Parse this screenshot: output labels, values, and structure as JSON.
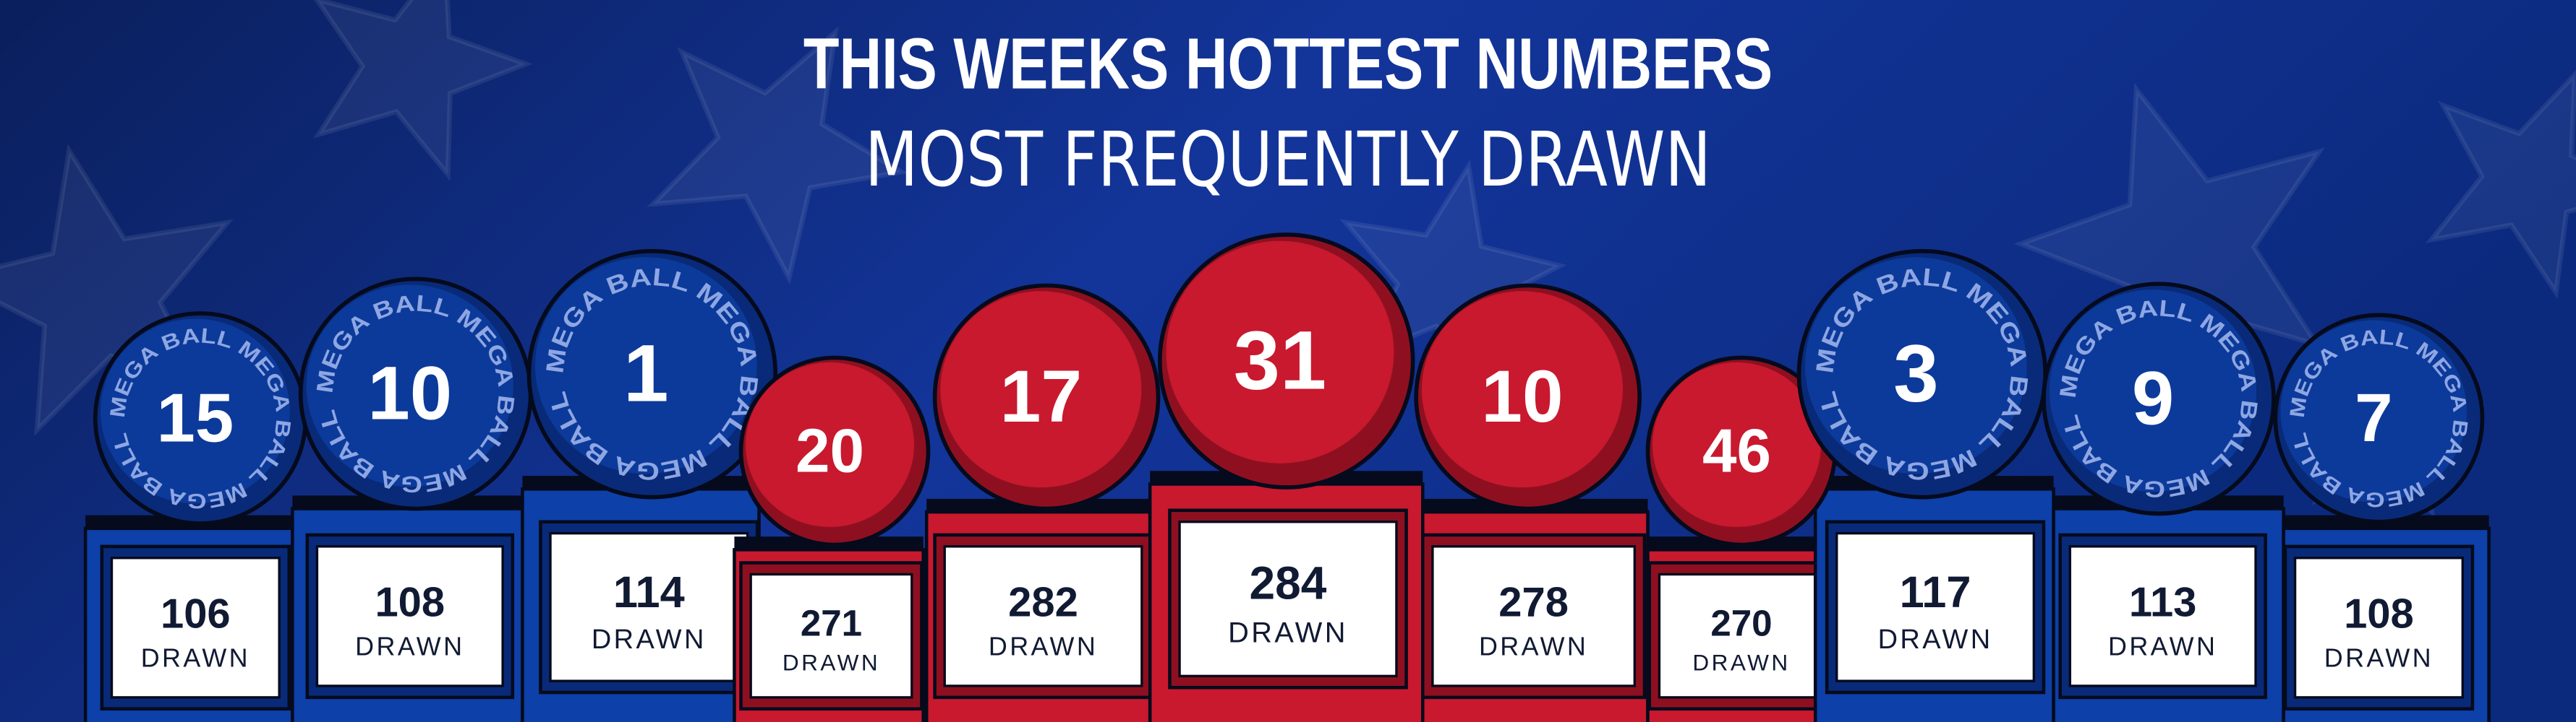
{
  "header": {
    "title": "THIS WEEKS HOTTEST NUMBERS",
    "subtitle": "MOST FREQUENTLY DRAWN"
  },
  "drawn_label": "DRAWN",
  "mega_ring_text": "MEGA BALL MEGA BALL MEGA BALL",
  "colors": {
    "background": "#0b2466",
    "white_ball_red": "#c8192e",
    "mega_ball_blue": "#0c3a9a",
    "pedestal_blue": "#0d40a8",
    "pedestal_red": "#c8192e",
    "count_text": "#111a33"
  },
  "numbers": [
    {
      "number": "15",
      "drawn": "106",
      "kind": "mega-ball"
    },
    {
      "number": "10",
      "drawn": "108",
      "kind": "mega-ball"
    },
    {
      "number": "1",
      "drawn": "114",
      "kind": "mega-ball"
    },
    {
      "number": "20",
      "drawn": "271",
      "kind": "white-ball"
    },
    {
      "number": "17",
      "drawn": "282",
      "kind": "white-ball"
    },
    {
      "number": "31",
      "drawn": "284",
      "kind": "white-ball"
    },
    {
      "number": "10",
      "drawn": "278",
      "kind": "white-ball"
    },
    {
      "number": "46",
      "drawn": "270",
      "kind": "white-ball"
    },
    {
      "number": "3",
      "drawn": "117",
      "kind": "mega-ball"
    },
    {
      "number": "9",
      "drawn": "113",
      "kind": "mega-ball"
    },
    {
      "number": "7",
      "drawn": "108",
      "kind": "mega-ball"
    }
  ]
}
